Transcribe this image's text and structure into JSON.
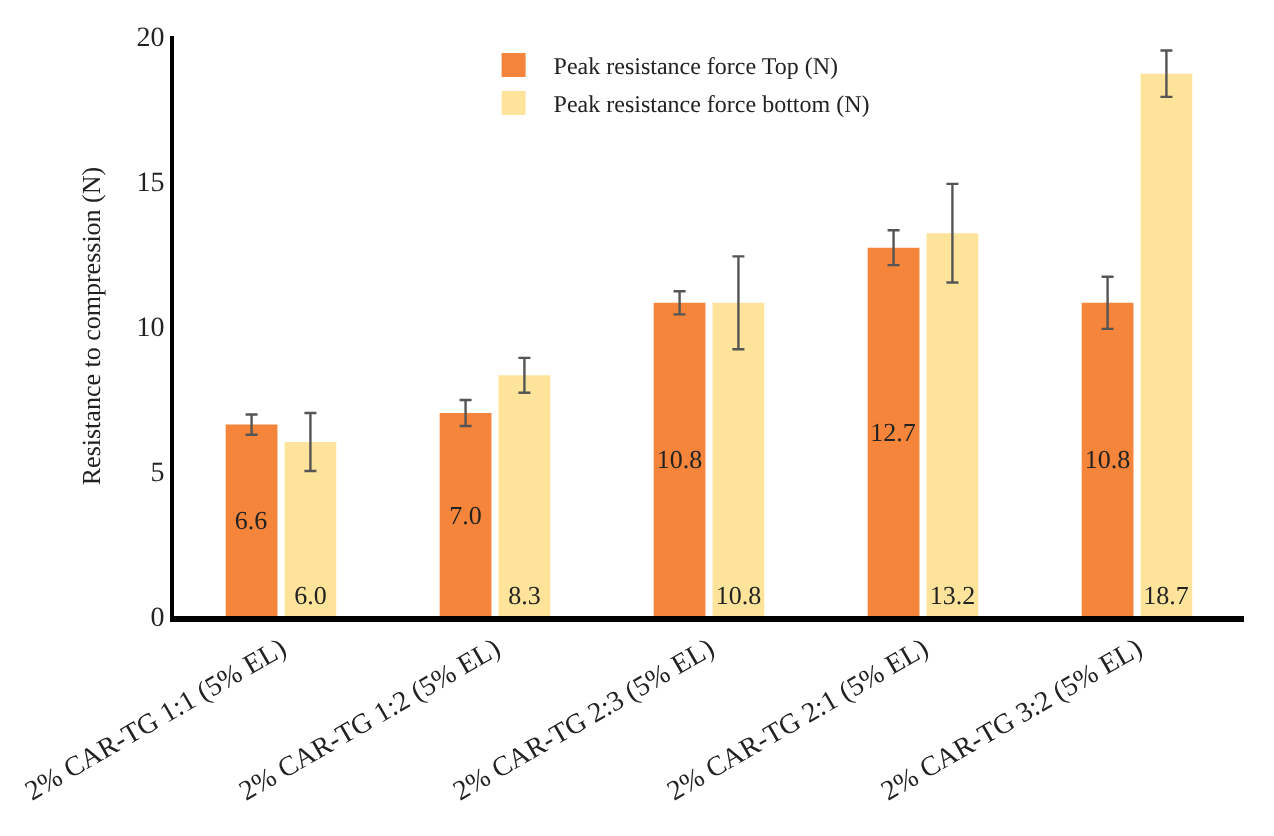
{
  "chart_data": {
    "type": "bar",
    "ylabel": "Resistance to compression (N)",
    "categories": [
      "2% CAR-TG 1:1 (5% EL)",
      "2% CAR-TG 1:2 (5% EL)",
      "2% CAR-TG 2:3 (5% EL)",
      "2% CAR-TG 2:1 (5% EL)",
      "2% CAR-TG 3:2 (5% EL)"
    ],
    "series": [
      {
        "name": "Peak resistance force Top (N)",
        "color": "#f5853a",
        "values": [
          6.6,
          7.0,
          10.8,
          12.7,
          10.8
        ],
        "value_labels": [
          "6.6",
          "7.0",
          "10.8",
          "12.7",
          "10.8"
        ],
        "errors": [
          0.35,
          0.45,
          0.4,
          0.6,
          0.9
        ]
      },
      {
        "name": "Peak resistance force bottom (N)",
        "color": "#fde49a",
        "values": [
          6.0,
          8.3,
          10.8,
          13.2,
          18.7
        ],
        "value_labels": [
          "6.0",
          "8.3",
          "10.8",
          "13.2",
          "18.7"
        ],
        "errors": [
          1.0,
          0.6,
          1.6,
          1.7,
          0.8
        ]
      }
    ],
    "ylim": [
      0,
      20
    ],
    "yticks": [
      0,
      5,
      10,
      15,
      20
    ],
    "grid": false,
    "legend": "top"
  }
}
